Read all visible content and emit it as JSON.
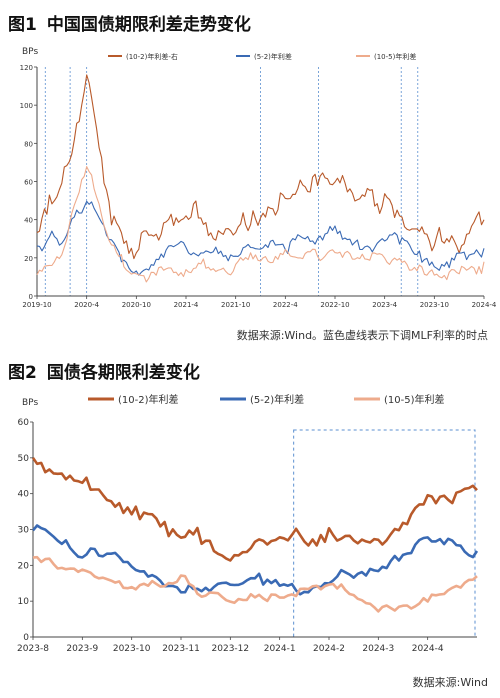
{
  "chart1": {
    "title_num": "图1",
    "title": "中国国债期限利差走势变化",
    "ylabel": "BPs",
    "source": "数据来源:Wind。蓝色虚线表示下调MLF利率的时点",
    "legend": [
      "(10-2)年利差-右",
      "(5-2)年利差",
      "(10-5)年利差"
    ],
    "colors": [
      "#b85a2b",
      "#3a6ab4",
      "#eeab8c"
    ],
    "yticks": [
      "0",
      "20",
      "40",
      "60",
      "80",
      "100",
      "120"
    ],
    "xticks": [
      "2019-10",
      "2020-4",
      "2020-10",
      "2021-4",
      "2021-10",
      "2022-4",
      "2022-10",
      "2023-4",
      "2023-10",
      "2024-4"
    ]
  },
  "chart2": {
    "title_num": "图2",
    "title": "国债各期限利差变化",
    "ylabel": "BPs",
    "source": "数据来源:Wind",
    "legend": [
      "(10-2)年利差",
      "(5-2)年利差",
      "(10-5)年利差"
    ],
    "colors": [
      "#b85a2b",
      "#3a6ab4",
      "#eeab8c"
    ],
    "yticks": [
      "0",
      "10",
      "20",
      "30",
      "40",
      "50",
      "60"
    ],
    "xticks": [
      "2023-8",
      "2023-9",
      "2023-10",
      "2023-11",
      "2023-12",
      "2024-1",
      "2024-2",
      "2024-3",
      "2024-4"
    ]
  },
  "chart_data": [
    {
      "type": "line",
      "title": "中国国债期限利差走势变化",
      "ylabel": "BPs",
      "ylim": [
        0,
        120
      ],
      "x": [
        "2019-10",
        "2020-1",
        "2020-4",
        "2020-7",
        "2020-10",
        "2021-1",
        "2021-4",
        "2021-7",
        "2021-10",
        "2022-1",
        "2022-4",
        "2022-7",
        "2022-10",
        "2023-1",
        "2023-4",
        "2023-7",
        "2023-10",
        "2024-1",
        "2024-4"
      ],
      "series": [
        {
          "name": "(10-2)年利差-右",
          "values": [
            38,
            58,
            115,
            42,
            25,
            35,
            40,
            38,
            40,
            42,
            52,
            58,
            62,
            48,
            52,
            42,
            28,
            30,
            40
          ]
        },
        {
          "name": "(5-2)年利差",
          "values": [
            28,
            30,
            48,
            25,
            10,
            22,
            25,
            23,
            25,
            26,
            28,
            30,
            38,
            25,
            28,
            24,
            15,
            18,
            25
          ]
        },
        {
          "name": "(10-5)年利差",
          "values": [
            12,
            18,
            70,
            22,
            8,
            15,
            14,
            15,
            15,
            18,
            20,
            22,
            22,
            18,
            20,
            16,
            10,
            12,
            18
          ]
        }
      ],
      "vlines": [
        "2019-11",
        "2020-2",
        "2020-4",
        "2022-1",
        "2022-8",
        "2023-6",
        "2023-8"
      ],
      "legend_position": "top"
    },
    {
      "type": "line",
      "title": "国债各期限利差变化",
      "ylabel": "BPs",
      "ylim": [
        0,
        60
      ],
      "x": [
        "2023-8",
        "2023-9",
        "2023-10",
        "2023-11",
        "2023-12",
        "2024-1",
        "2024-2",
        "2024-3",
        "2024-4",
        "2024-5"
      ],
      "series": [
        {
          "name": "(10-2)年利差",
          "values": [
            51,
            42,
            35,
            30,
            23,
            27,
            30,
            25,
            38,
            41
          ]
        },
        {
          "name": "(5-2)年利差",
          "values": [
            30,
            23,
            21,
            13,
            15,
            14,
            15,
            18,
            27,
            24
          ]
        },
        {
          "name": "(10-5)年利差",
          "values": [
            22,
            18,
            14,
            16,
            10,
            12,
            14,
            8,
            11,
            17
          ]
        }
      ],
      "highlight_box": [
        "2024-1",
        "2024-5"
      ],
      "legend_position": "top"
    }
  ]
}
